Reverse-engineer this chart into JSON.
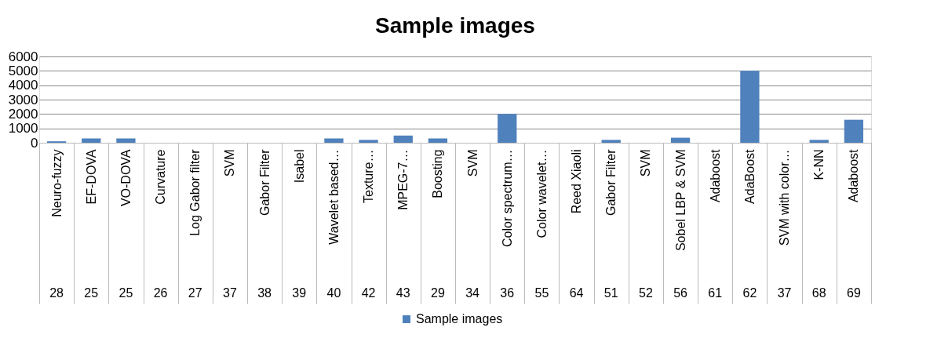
{
  "chart_data": {
    "type": "bar",
    "title": "Sample images",
    "categories": [
      "Neuro-fuzzy",
      "EF-DOVA",
      "VO-DOVA",
      "Curvature",
      "Log Gabor filter",
      "SVM",
      "Gabor Filter",
      "Isabel",
      "Wavelet based…",
      "Texture…",
      "MPEG-7…",
      "Boosting",
      "SVM",
      "Color spectrum…",
      "Color wavelet…",
      "Reed Xiaoli",
      "Gabor Filter",
      "SVM",
      "Sobel LBP & SVM",
      "Adaboost",
      "AdaBoost",
      "SVM with color…",
      "K-NN",
      "Adaboost"
    ],
    "annotations": [
      "28",
      "25",
      "25",
      "26",
      "27",
      "37",
      "38",
      "39",
      "40",
      "42",
      "43",
      "29",
      "34",
      "36",
      "55",
      "64",
      "51",
      "52",
      "56",
      "61",
      "62",
      "37",
      "68",
      "69"
    ],
    "series": [
      {
        "name": "Sample images",
        "color": "#4f81bd",
        "values": [
          100,
          300,
          300,
          0,
          0,
          0,
          0,
          0,
          300,
          200,
          500,
          300,
          0,
          2000,
          0,
          0,
          200,
          0,
          350,
          0,
          5000,
          0,
          200,
          1600
        ]
      }
    ],
    "ylim": [
      0,
      6000
    ],
    "yticks": [
      0,
      1000,
      2000,
      3000,
      4000,
      5000,
      6000
    ],
    "grid": "y",
    "legend": "bottom"
  }
}
